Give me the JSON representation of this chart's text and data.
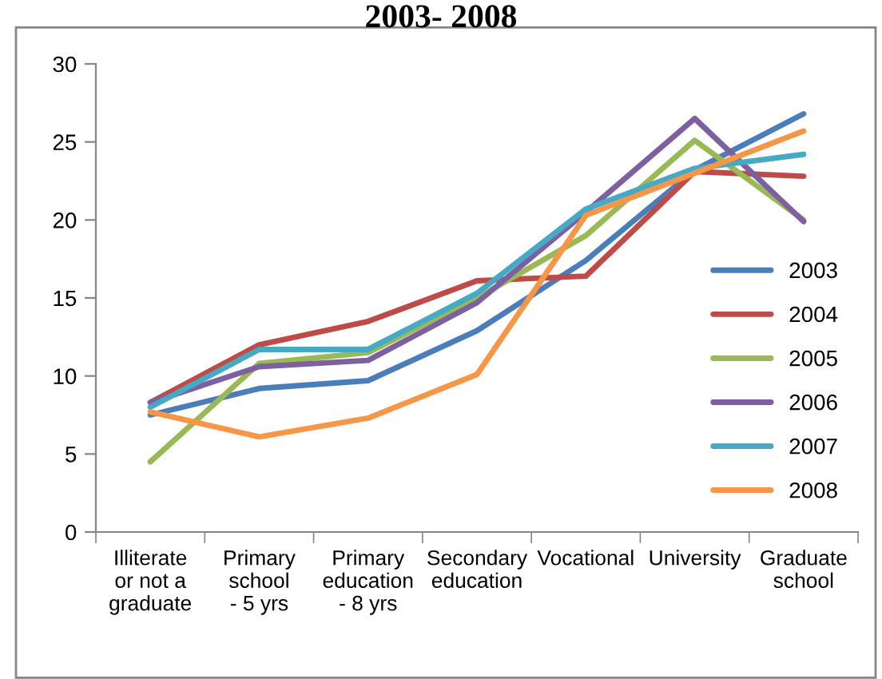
{
  "chart_data": {
    "type": "line",
    "title": "2003- 2008",
    "categories": [
      "Illiterate\nor not a\ngraduate",
      "Primary\nschool\n- 5 yrs",
      "Primary\neducation\n- 8 yrs",
      "Secondary\neducation",
      "Vocational",
      "University",
      "Graduate\nschool"
    ],
    "series": [
      {
        "name": "2003",
        "color": "#4a7ebb",
        "values": [
          7.5,
          9.2,
          9.7,
          12.9,
          17.4,
          23.2,
          26.8
        ]
      },
      {
        "name": "2004",
        "color": "#be4b48",
        "values": [
          8.3,
          12.0,
          13.5,
          16.1,
          16.4,
          23.1,
          22.8
        ]
      },
      {
        "name": "2005",
        "color": "#98b954",
        "values": [
          4.5,
          10.8,
          11.5,
          15.0,
          19.0,
          25.1,
          20.0
        ]
      },
      {
        "name": "2006",
        "color": "#7d60a0",
        "values": [
          8.3,
          10.6,
          11.0,
          14.7,
          20.5,
          26.5,
          19.9
        ]
      },
      {
        "name": "2007",
        "color": "#46aac5",
        "values": [
          8.0,
          11.7,
          11.7,
          15.3,
          20.7,
          23.3,
          24.2
        ]
      },
      {
        "name": "2008",
        "color": "#f79646",
        "values": [
          7.7,
          6.1,
          7.3,
          10.1,
          20.3,
          23.0,
          25.7
        ]
      }
    ],
    "ylim": [
      0,
      30
    ],
    "yticks": [
      0,
      5,
      10,
      15,
      20,
      25,
      30
    ],
    "grid": false,
    "legend": "right",
    "marker": "none",
    "line_style": "solid"
  }
}
